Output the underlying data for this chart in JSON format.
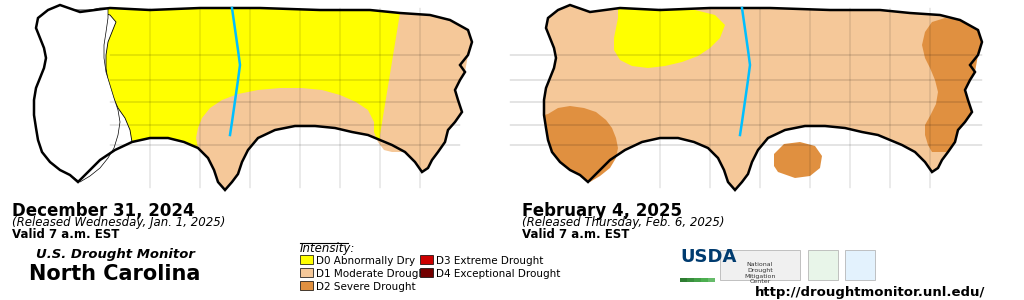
{
  "map1_date": "December 31, 2024",
  "map1_released": "(Released Wednesday, Jan. 1, 2025)",
  "map1_valid": "Valid 7 a.m. EST",
  "map2_date": "February 4, 2025",
  "map2_released": "(Released Thursday, Feb. 6, 2025)",
  "map2_valid": "Valid 7 a.m. EST",
  "us_drought_monitor": "U.S. Drought Monitor",
  "state_name": "North Carolina",
  "url": "http://droughtmonitor.unl.edu/",
  "legend_title": "Intensity:",
  "legend_items_left": [
    {
      "label": "D0 Abnormally Dry",
      "color": "#FFFF00"
    },
    {
      "label": "D1 Moderate Drought",
      "color": "#F5C899"
    },
    {
      "label": "D2 Severe Drought",
      "color": "#E09040"
    }
  ],
  "legend_items_right": [
    {
      "label": "D3 Extreme Drought",
      "color": "#CC0000"
    },
    {
      "label": "D4 Exceptional Drought",
      "color": "#730000"
    }
  ],
  "background_color": "#FFFFFF",
  "color_white": "#FFFFFF",
  "color_yellow": "#FFFF00",
  "color_tan": "#F5C899",
  "color_orange": "#E09040",
  "color_river": "#00BFFF",
  "color_border": "#000000",
  "usda_blue": "#003399",
  "usda_green": "#006600"
}
